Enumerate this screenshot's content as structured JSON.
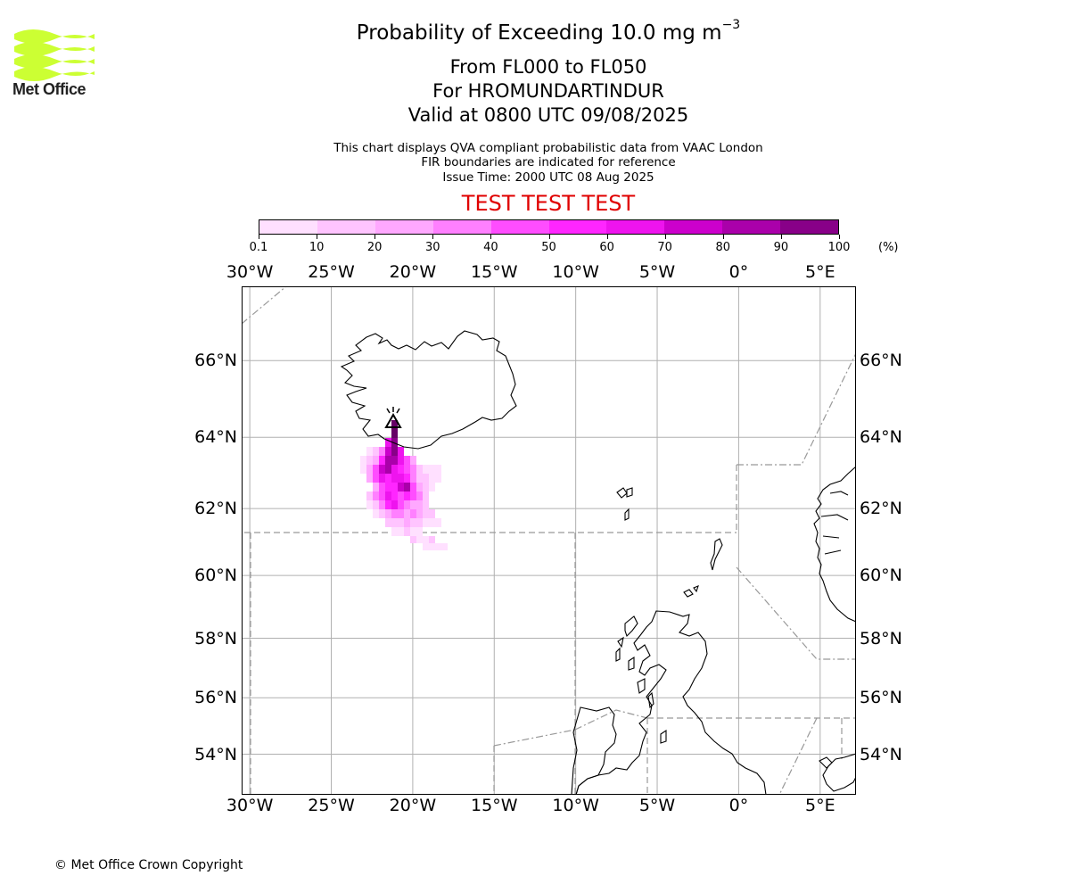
{
  "logo": {
    "name": "Met Office",
    "icon": "met-office-wave-logo",
    "color": "#ccff33"
  },
  "header": {
    "title": "Probability of Exceeding 10.0 mg m",
    "title_exponent": "−3",
    "level_range": "From FL000 to FL050",
    "volcano_line": "For HROMUNDARTINDUR",
    "valid_time": "Valid at 0800 UTC 09/08/2025",
    "info_line1": "This chart displays QVA compliant probabilistic data from VAAC London",
    "info_line2": "FIR boundaries are indicated for reference",
    "issue_time": "Issue Time: 2000 UTC 08 Aug 2025",
    "test_banner": "TEST TEST TEST"
  },
  "colorbar": {
    "unit": "(%)",
    "tick_labels": [
      "0.1",
      "10",
      "20",
      "30",
      "40",
      "50",
      "60",
      "70",
      "80",
      "90",
      "100"
    ],
    "colors": [
      "#ffe0ff",
      "#ffc4ff",
      "#ffa8ff",
      "#ff80ff",
      "#ff4dff",
      "#ff26ff",
      "#ee14ee",
      "#cc00cc",
      "#aa00aa",
      "#880088",
      "#660066"
    ]
  },
  "map": {
    "projection_extent": {
      "lon_min": -30.5,
      "lon_max": 7.2,
      "lat_min": 52.5,
      "lat_max": 67.8
    },
    "longitude_labels": [
      "30°W",
      "25°W",
      "20°W",
      "15°W",
      "10°W",
      "5°W",
      "0°",
      "5°E"
    ],
    "latitude_labels": [
      "66°N",
      "64°N",
      "62°N",
      "60°N",
      "58°N",
      "56°N",
      "54°N"
    ],
    "volcano_marker": "volcano-triangle-icon",
    "grid": true
  },
  "footer": {
    "copyright": "© Met Office Crown Copyright"
  }
}
